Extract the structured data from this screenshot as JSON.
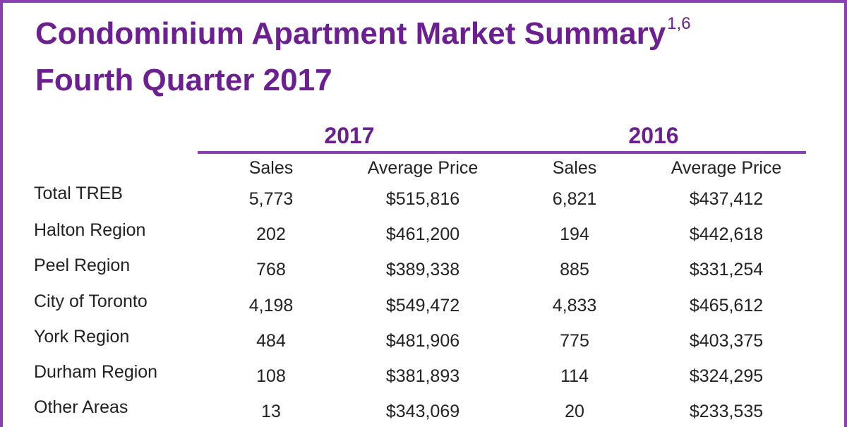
{
  "title": {
    "line1": "Condominium Apartment Market Summary",
    "superscript": "1,6",
    "line2": "Fourth Quarter 2017"
  },
  "years": {
    "current": "2017",
    "previous": "2016"
  },
  "columns": {
    "sales_2017": "Sales",
    "avg_price_2017": "Average Price",
    "sales_2016": "Sales",
    "avg_price_2016": "Average Price"
  },
  "rows": [
    {
      "label": "Total TREB",
      "sales_2017": "5,773",
      "avg_price_2017": "$515,816",
      "sales_2016": "6,821",
      "avg_price_2016": "$437,412"
    },
    {
      "label": "Halton Region",
      "sales_2017": "202",
      "avg_price_2017": "$461,200",
      "sales_2016": "194",
      "avg_price_2016": "$442,618"
    },
    {
      "label": "Peel Region",
      "sales_2017": "768",
      "avg_price_2017": "$389,338",
      "sales_2016": "885",
      "avg_price_2016": "$331,254"
    },
    {
      "label": "City of Toronto",
      "sales_2017": "4,198",
      "avg_price_2017": "$549,472",
      "sales_2016": "4,833",
      "avg_price_2016": "$465,612"
    },
    {
      "label": "York Region",
      "sales_2017": "484",
      "avg_price_2017": "$481,906",
      "sales_2016": "775",
      "avg_price_2016": "$403,375"
    },
    {
      "label": "Durham Region",
      "sales_2017": "108",
      "avg_price_2017": "$381,893",
      "sales_2016": "114",
      "avg_price_2016": "$324,295"
    },
    {
      "label": "Other Areas",
      "sales_2017": "13",
      "avg_price_2017": "$343,069",
      "sales_2016": "20",
      "avg_price_2016": "$233,535"
    }
  ],
  "colors": {
    "title": "#6b1f91",
    "accent_rule": "#8a3fb3",
    "text": "#222222"
  }
}
